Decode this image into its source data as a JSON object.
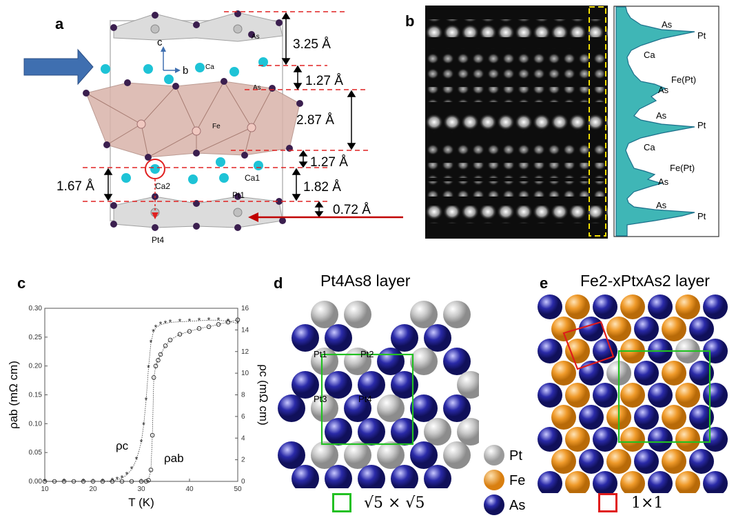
{
  "panel_labels": {
    "a": "a",
    "b": "b",
    "c": "c",
    "d": "d",
    "e": "e"
  },
  "panel_a": {
    "distances": [
      "3.25 Å",
      "1.27 Å",
      "2.87 Å",
      "1.27 Å",
      "1.82 Å",
      "0.72 Å"
    ],
    "left_distance": "1.67 Å",
    "atom_labels": {
      "As_top": "As",
      "As_mid": "As",
      "Ca": "Ca",
      "Fe": "Fe",
      "Ca1": "Ca1",
      "Ca2": "Ca2",
      "Pt1": "Pt1",
      "Pt4": "Pt4"
    },
    "axes": {
      "c": "c",
      "b": "b"
    },
    "colors": {
      "ca": "#1ec3d6",
      "as": "#3b1f4f",
      "fe_poly": "#d9b3aa",
      "arrow_blue": "#3f6fb0",
      "dash_red": "#e02020"
    }
  },
  "panel_b": {
    "profile_labels": [
      "As",
      "Pt",
      "Ca",
      "Fe(Pt)",
      "As",
      "As",
      "Pt",
      "Ca",
      "Fe(Pt)",
      "As",
      "As",
      "Pt"
    ],
    "profile_color": "#3fb6b6"
  },
  "chart_data": {
    "type": "scatter",
    "xlabel": "T (K)",
    "ylabel_left": "ρab (mΩ cm)",
    "ylabel_right": "ρc (mΩ cm)",
    "xlim": [
      10,
      50
    ],
    "ylim_left": [
      0,
      0.3
    ],
    "ylim_right": [
      0,
      16
    ],
    "x_ticks": [
      "10",
      "20",
      "30",
      "40",
      "50"
    ],
    "y_ticks_left": [
      "0.00",
      "0.05",
      "0.10",
      "0.15",
      "0.20",
      "0.25",
      "0.30"
    ],
    "y_ticks_right": [
      "0",
      "2",
      "4",
      "6",
      "8",
      "10",
      "12",
      "14",
      "16"
    ],
    "series": [
      {
        "name": "ρab",
        "marker": "circle",
        "axis": "left",
        "x": [
          10,
          12,
          14,
          16,
          18,
          20,
          22,
          24,
          26,
          28,
          30,
          31,
          31.5,
          32,
          32.3,
          32.6,
          33,
          33.5,
          34,
          35,
          36,
          38,
          40,
          42,
          44,
          46,
          48,
          50
        ],
        "y": [
          0,
          0,
          0,
          0,
          0,
          0,
          0,
          0,
          0,
          0,
          0,
          0,
          0.002,
          0.02,
          0.08,
          0.18,
          0.2,
          0.21,
          0.22,
          0.235,
          0.245,
          0.255,
          0.26,
          0.265,
          0.268,
          0.272,
          0.276,
          0.28
        ]
      },
      {
        "name": "ρc",
        "marker": "star",
        "axis": "right",
        "x": [
          10,
          14,
          18,
          22,
          24,
          25,
          26,
          27,
          28,
          29,
          30,
          30.5,
          31,
          31.5,
          32,
          32.5,
          33,
          34,
          35,
          36,
          38,
          40,
          42,
          44,
          46,
          48,
          50
        ],
        "y": [
          0,
          0,
          0,
          0,
          0.05,
          0.15,
          0.3,
          0.6,
          1.1,
          2.0,
          3.6,
          5.2,
          7.5,
          10.5,
          12.8,
          13.8,
          14.2,
          14.5,
          14.6,
          14.7,
          14.75,
          14.8,
          14.85,
          14.9,
          14.9,
          14.8,
          14.6
        ]
      }
    ],
    "annotations": [
      "ρc",
      "ρab"
    ]
  },
  "panel_d": {
    "title": "Pt4As8 layer",
    "pt_labels": [
      "Pt1",
      "Pt2",
      "Pt3",
      "Pt4"
    ],
    "legend": [
      "Pt",
      "Fe",
      "As"
    ],
    "cell_label": "√5 × √5",
    "colors": {
      "pt": "#bdbdbd",
      "fe": "#ef9a2a",
      "as": "#2a2aa8",
      "green": "#22c022",
      "red": "#e01b1b"
    }
  },
  "panel_e": {
    "title": "Fe2-xPtxAs2 layer",
    "cell_label": "1×1"
  }
}
